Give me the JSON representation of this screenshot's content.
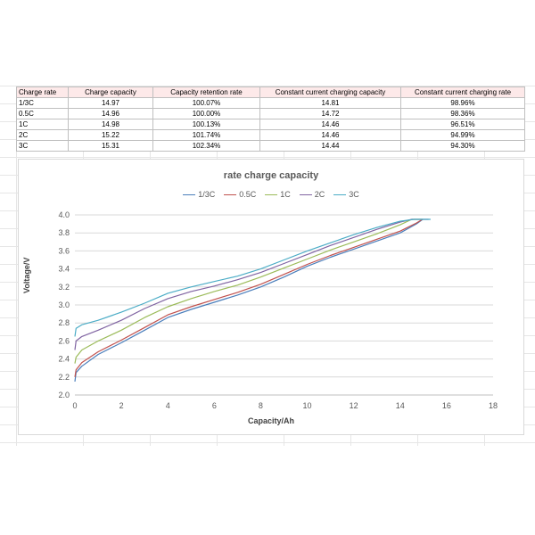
{
  "table": {
    "headers": [
      "Charge rate",
      "Charge capacity",
      "Capacity retention rate",
      "Constant current charging capacity",
      "Constant current charging rate"
    ],
    "rows": [
      [
        "1/3C",
        "14.97",
        "100.07%",
        "14.81",
        "98.96%"
      ],
      [
        "0.5C",
        "14.96",
        "100.00%",
        "14.72",
        "98.36%"
      ],
      [
        "1C",
        "14.98",
        "100.13%",
        "14.46",
        "96.51%"
      ],
      [
        "2C",
        "15.22",
        "101.74%",
        "14.46",
        "94.99%"
      ],
      [
        "3C",
        "15.31",
        "102.34%",
        "14.44",
        "94.30%"
      ]
    ]
  },
  "chart_data": {
    "type": "line",
    "title": "rate charge capacity",
    "xlabel": "Capacity/Ah",
    "ylabel": "Voltage/V",
    "xlim": [
      0,
      18
    ],
    "ylim": [
      2.0,
      4.0
    ],
    "xticks": [
      "0",
      "2",
      "4",
      "6",
      "8",
      "10",
      "12",
      "14",
      "16",
      "18"
    ],
    "yticks": [
      "2.0",
      "2.2",
      "2.4",
      "2.6",
      "2.8",
      "3.0",
      "3.2",
      "3.4",
      "3.6",
      "3.8",
      "4.0"
    ],
    "grid": "horizontal",
    "legend": "top",
    "series": [
      {
        "name": "1/3C",
        "color": "#4a7ebb",
        "x": [
          0,
          0.05,
          0.3,
          1,
          2,
          3,
          4,
          5,
          6,
          7,
          8,
          9,
          10,
          11,
          12,
          13,
          14,
          14.7,
          14.97
        ],
        "y": [
          2.15,
          2.25,
          2.32,
          2.45,
          2.58,
          2.72,
          2.86,
          2.95,
          3.03,
          3.11,
          3.2,
          3.31,
          3.43,
          3.53,
          3.62,
          3.71,
          3.8,
          3.9,
          3.95
        ]
      },
      {
        "name": "0.5C",
        "color": "#c0504d",
        "x": [
          0,
          0.05,
          0.3,
          1,
          2,
          3,
          4,
          5,
          6,
          7,
          8,
          9,
          10,
          11,
          12,
          13,
          14,
          14.7,
          14.96
        ],
        "y": [
          2.2,
          2.28,
          2.36,
          2.48,
          2.61,
          2.75,
          2.89,
          2.98,
          3.06,
          3.14,
          3.23,
          3.34,
          3.45,
          3.55,
          3.64,
          3.73,
          3.82,
          3.91,
          3.95
        ]
      },
      {
        "name": "1C",
        "color": "#9bbb59",
        "x": [
          0,
          0.05,
          0.3,
          1,
          2,
          3,
          4,
          5,
          6,
          7,
          8,
          9,
          10,
          11,
          12,
          13,
          14,
          14.5,
          14.98
        ],
        "y": [
          2.35,
          2.42,
          2.5,
          2.6,
          2.72,
          2.86,
          2.98,
          3.07,
          3.15,
          3.22,
          3.31,
          3.41,
          3.51,
          3.61,
          3.7,
          3.79,
          3.89,
          3.95,
          3.95
        ]
      },
      {
        "name": "2C",
        "color": "#8064a2",
        "x": [
          0,
          0.05,
          0.3,
          1,
          2,
          3,
          4,
          5,
          6,
          7,
          8,
          9,
          10,
          11,
          12,
          13,
          14,
          14.5,
          15.22
        ],
        "y": [
          2.5,
          2.6,
          2.65,
          2.72,
          2.83,
          2.96,
          3.07,
          3.15,
          3.21,
          3.28,
          3.36,
          3.46,
          3.56,
          3.66,
          3.75,
          3.84,
          3.92,
          3.95,
          3.95
        ]
      },
      {
        "name": "3C",
        "color": "#4bacc6",
        "x": [
          0,
          0.05,
          0.3,
          1,
          2,
          3,
          4,
          5,
          6,
          7,
          8,
          9,
          10,
          11,
          12,
          13,
          14,
          14.6,
          15.31
        ],
        "y": [
          2.65,
          2.74,
          2.78,
          2.83,
          2.92,
          3.02,
          3.13,
          3.2,
          3.26,
          3.32,
          3.4,
          3.5,
          3.6,
          3.69,
          3.78,
          3.86,
          3.93,
          3.95,
          3.95
        ]
      }
    ]
  }
}
